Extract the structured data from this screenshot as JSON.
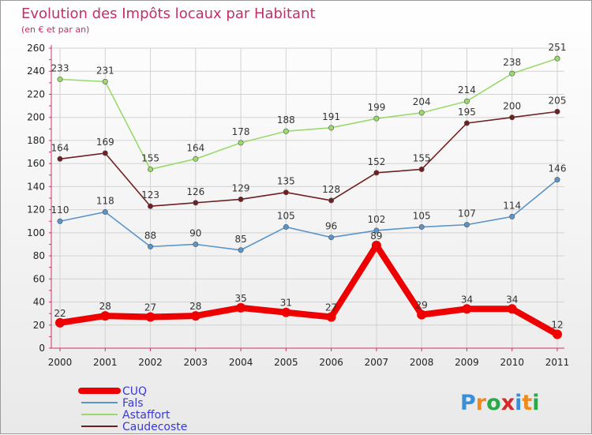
{
  "chart_data": {
    "type": "line",
    "title": "Evolution des Impôts locaux par Habitant",
    "subtitle": "(en € et par an)",
    "xlabel": "",
    "ylabel": "",
    "categories": [
      "2000",
      "2001",
      "2002",
      "2003",
      "2004",
      "2005",
      "2006",
      "2007",
      "2008",
      "2009",
      "2010",
      "2011"
    ],
    "ylim": [
      0,
      260
    ],
    "yticks": [
      0,
      20,
      40,
      60,
      80,
      100,
      120,
      140,
      160,
      180,
      200,
      220,
      240,
      260
    ],
    "grid": true,
    "legend_position": "bottom-left",
    "series": [
      {
        "name": "CUQ",
        "values": [
          22,
          28,
          27,
          28,
          35,
          31,
          27,
          89,
          29,
          34,
          34,
          12
        ],
        "color": "#ee0000"
      },
      {
        "name": "Fals",
        "values": [
          110,
          118,
          88,
          90,
          85,
          105,
          96,
          102,
          105,
          107,
          114,
          146
        ],
        "color": "#5b94c8"
      },
      {
        "name": "Astaffort",
        "values": [
          233,
          231,
          155,
          164,
          178,
          188,
          191,
          199,
          204,
          214,
          238,
          251
        ],
        "color": "#9ada6c"
      },
      {
        "name": "Caudecoste",
        "values": [
          164,
          169,
          123,
          126,
          129,
          135,
          128,
          152,
          155,
          195,
          200,
          205
        ],
        "color": "#6e2020"
      }
    ]
  },
  "brand": {
    "name": "Proxiti",
    "letters": [
      "P",
      "r",
      "o",
      "x",
      "i",
      "t",
      "i"
    ],
    "colors": [
      "#3a8fd6",
      "#f08a1c",
      "#2aa84a",
      "#d42a2a",
      "#3a8fd6",
      "#f08a1c",
      "#2aa84a"
    ]
  }
}
